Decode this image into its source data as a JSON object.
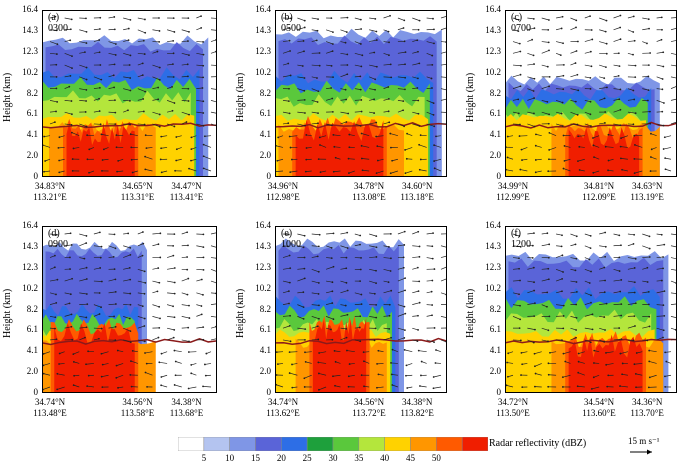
{
  "y_axis_label": "Height (km)",
  "y_ticks": [
    "0",
    "2.0",
    "4.1",
    "6.1",
    "8.2",
    "10.2",
    "12.3",
    "14.3",
    "16.4"
  ],
  "panels": [
    {
      "label": "(a) 0300",
      "lat": [
        "34.83°N",
        "34.65°N",
        "34.47°N"
      ],
      "lon": [
        "113.21°E",
        "113.31°E",
        "113.41°E"
      ]
    },
    {
      "label": "(b) 0500",
      "lat": [
        "34.96°N",
        "34.78°N",
        "34.60°N"
      ],
      "lon": [
        "112.98°E",
        "113.08°E",
        "113.18°E"
      ]
    },
    {
      "label": "(c) 0700",
      "lat": [
        "34.99°N",
        "34.81°N",
        "34.63°N"
      ],
      "lon": [
        "112.99°E",
        "112.09°E",
        "113.19°E"
      ]
    },
    {
      "label": "(d) 0900",
      "lat": [
        "34.74°N",
        "34.56°N",
        "34.38°N"
      ],
      "lon": [
        "113.48°E",
        "113.58°E",
        "113.68°E"
      ]
    },
    {
      "label": "(e) 1000",
      "lat": [
        "34.74°N",
        "34.56°N",
        "34.38°N"
      ],
      "lon": [
        "113.62°E",
        "113.72°E",
        "113.82°E"
      ]
    },
    {
      "label": "(f) 1200",
      "lat": [
        "34.72°N",
        "34.54°N",
        "34.36°N"
      ],
      "lon": [
        "113.50°E",
        "113.60°E",
        "113.70°E"
      ]
    }
  ],
  "colorbar": {
    "ticks": [
      "5",
      "10",
      "15",
      "20",
      "25",
      "30",
      "35",
      "40",
      "45",
      "50"
    ],
    "colors": [
      "#ffffff",
      "#b4c4f0",
      "#7f96e6",
      "#5a64d8",
      "#2d6ee6",
      "#1ea03c",
      "#5ac83c",
      "#b4e63c",
      "#ffd200",
      "#ff9600",
      "#ff5a00",
      "#f01e00"
    ],
    "label": "Radar reflectivity (dBZ)"
  },
  "reference_vector": "15 m s⁻¹",
  "melting_line_color": "#8b1a1a"
}
